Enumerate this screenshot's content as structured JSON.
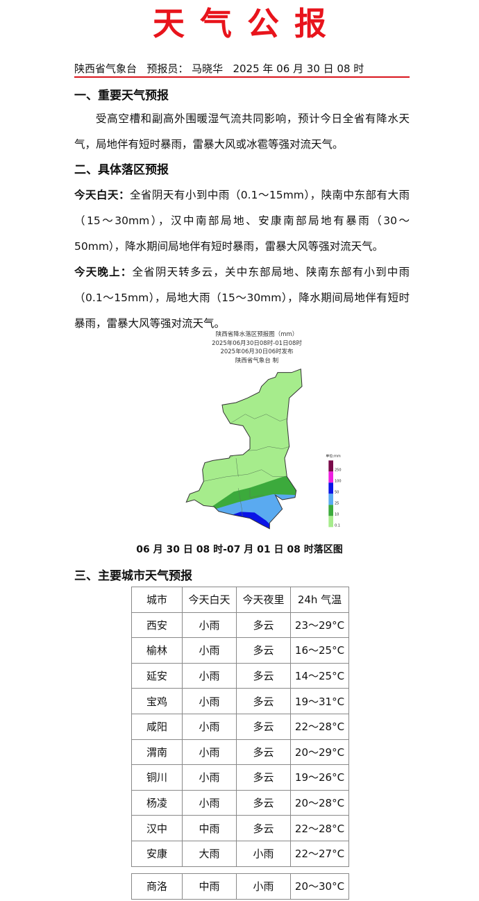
{
  "title": "天气公报",
  "meta": {
    "org": "陕西省气象台",
    "forecaster_label": "预报员：",
    "forecaster": "马晓华",
    "datetime": "2025 年 06 月 30 日 08 时"
  },
  "sections": [
    {
      "heading": "一、重要天气预报",
      "text": "受高空槽和副高外围暖湿气流共同影响，预计今日全省有降水天气，局地伴有短时暴雨，雷暴大风或冰雹等强对流天气。"
    },
    {
      "heading": "二、具体落区预报",
      "day_label": "今天白天：",
      "day_text": "全省阴天有小到中雨（0.1～15mm），陕南中东部有大雨（15～30mm），汉中南部局地、安康南部局地有暴雨（30～50mm），降水期间局地伴有短时暴雨，雷暴大风等强对流天气。",
      "night_label": "今天晚上：",
      "night_text": "全省阴天转多云，关中东部局地、陕南东部有小到中雨（0.1～15mm），局地大雨（15～30mm），降水期间局地伴有短时暴雨，雷暴大风等强对流天气。"
    },
    {
      "heading": "三、主要城市天气预报"
    }
  ],
  "map": {
    "title": "陕西省降水落区预报图（mm）",
    "period": "2025年06月30日08时-01日08时",
    "issued": "2025年06月30日06时发布",
    "producer": "陕西省气象台 制",
    "legend_unit": "单位:mm",
    "legend": [
      {
        "label": "250",
        "color": "#7a0a4a"
      },
      {
        "label": "100",
        "color": "#ee1ee0"
      },
      {
        "label": "50",
        "color": "#0a14e6"
      },
      {
        "label": "25",
        "color": "#5aaaf0"
      },
      {
        "label": "10",
        "color": "#3caa3c"
      },
      {
        "label": "0.1",
        "color": "#a6ec8c"
      }
    ]
  },
  "caption": "06 月 30 日 08 时-07 月 01 日 08 时落区图",
  "table": {
    "headers": [
      "城市",
      "今天白天",
      "今天夜里",
      "24h 气温"
    ],
    "rows": [
      [
        "西安",
        "小雨",
        "多云",
        "23～29°C"
      ],
      [
        "榆林",
        "小雨",
        "多云",
        "16～25°C"
      ],
      [
        "延安",
        "小雨",
        "多云",
        "14～25°C"
      ],
      [
        "宝鸡",
        "小雨",
        "多云",
        "19～31°C"
      ],
      [
        "咸阳",
        "小雨",
        "多云",
        "22～28°C"
      ],
      [
        "渭南",
        "小雨",
        "多云",
        "20～29°C"
      ],
      [
        "铜川",
        "小雨",
        "多云",
        "19～26°C"
      ],
      [
        "杨凌",
        "小雨",
        "多云",
        "20～28°C"
      ],
      [
        "汉中",
        "中雨",
        "多云",
        "22～28°C"
      ],
      [
        "安康",
        "大雨",
        "小雨",
        "22～27°C"
      ],
      [
        "商洛",
        "中雨",
        "小雨",
        "20～30°C"
      ]
    ]
  }
}
